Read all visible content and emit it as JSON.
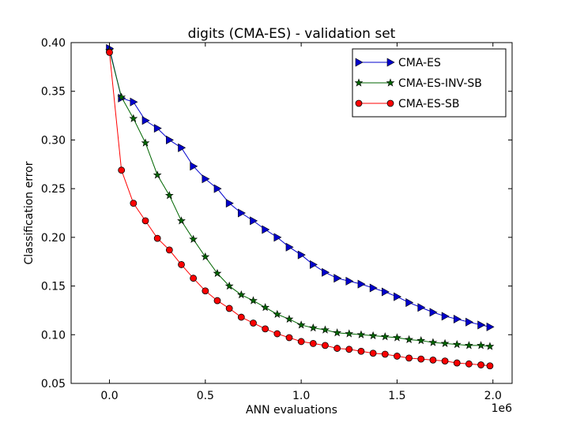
{
  "chart_data": {
    "type": "line",
    "title": "digits (CMA-ES) - validation set",
    "xlabel": "ANN evaluations",
    "ylabel": "Classification error",
    "x_offset_label": "1e6",
    "xlim": [
      -0.2,
      2.1
    ],
    "ylim": [
      0.05,
      0.4
    ],
    "xticks": [
      0.0,
      0.5,
      1.0,
      1.5,
      2.0
    ],
    "xtick_labels": [
      "0.0",
      "0.5",
      "1.0",
      "1.5",
      "2.0"
    ],
    "yticks": [
      0.05,
      0.1,
      0.15,
      0.2,
      0.25,
      0.3,
      0.35,
      0.4
    ],
    "ytick_labels": [
      "0.05",
      "0.10",
      "0.15",
      "0.20",
      "0.25",
      "0.30",
      "0.35",
      "0.40"
    ],
    "grid": false,
    "legend_position": "top-right",
    "x": [
      0.0,
      0.0625,
      0.125,
      0.1875,
      0.25,
      0.3125,
      0.375,
      0.4375,
      0.5,
      0.5625,
      0.625,
      0.6875,
      0.75,
      0.8125,
      0.875,
      0.9375,
      1.0,
      1.0625,
      1.125,
      1.1875,
      1.25,
      1.3125,
      1.375,
      1.4375,
      1.5,
      1.5625,
      1.625,
      1.6875,
      1.75,
      1.8125,
      1.875,
      1.9375,
      1.9844
    ],
    "series": [
      {
        "name": "CMA-ES",
        "color": "#0000cc",
        "marker": "triangle-right",
        "values": [
          0.394,
          0.343,
          0.339,
          0.32,
          0.312,
          0.3,
          0.292,
          0.273,
          0.26,
          0.25,
          0.235,
          0.225,
          0.217,
          0.208,
          0.2,
          0.19,
          0.182,
          0.172,
          0.164,
          0.158,
          0.155,
          0.152,
          0.148,
          0.144,
          0.139,
          0.133,
          0.128,
          0.123,
          0.119,
          0.116,
          0.113,
          0.11,
          0.108
        ]
      },
      {
        "name": "CMA-ES-INV-SB",
        "color": "#006600",
        "marker": "star",
        "values": [
          0.392,
          0.344,
          0.322,
          0.297,
          0.264,
          0.243,
          0.217,
          0.198,
          0.18,
          0.163,
          0.15,
          0.141,
          0.135,
          0.128,
          0.121,
          0.116,
          0.11,
          0.107,
          0.105,
          0.102,
          0.101,
          0.1,
          0.099,
          0.098,
          0.097,
          0.095,
          0.094,
          0.092,
          0.091,
          0.09,
          0.089,
          0.089,
          0.088
        ]
      },
      {
        "name": "CMA-ES-SB",
        "color": "#ff0000",
        "marker": "circle",
        "values": [
          0.39,
          0.269,
          0.235,
          0.217,
          0.199,
          0.187,
          0.172,
          0.158,
          0.145,
          0.135,
          0.127,
          0.118,
          0.112,
          0.106,
          0.101,
          0.097,
          0.093,
          0.091,
          0.089,
          0.086,
          0.085,
          0.083,
          0.081,
          0.08,
          0.078,
          0.076,
          0.075,
          0.074,
          0.073,
          0.071,
          0.07,
          0.069,
          0.068
        ]
      }
    ]
  }
}
